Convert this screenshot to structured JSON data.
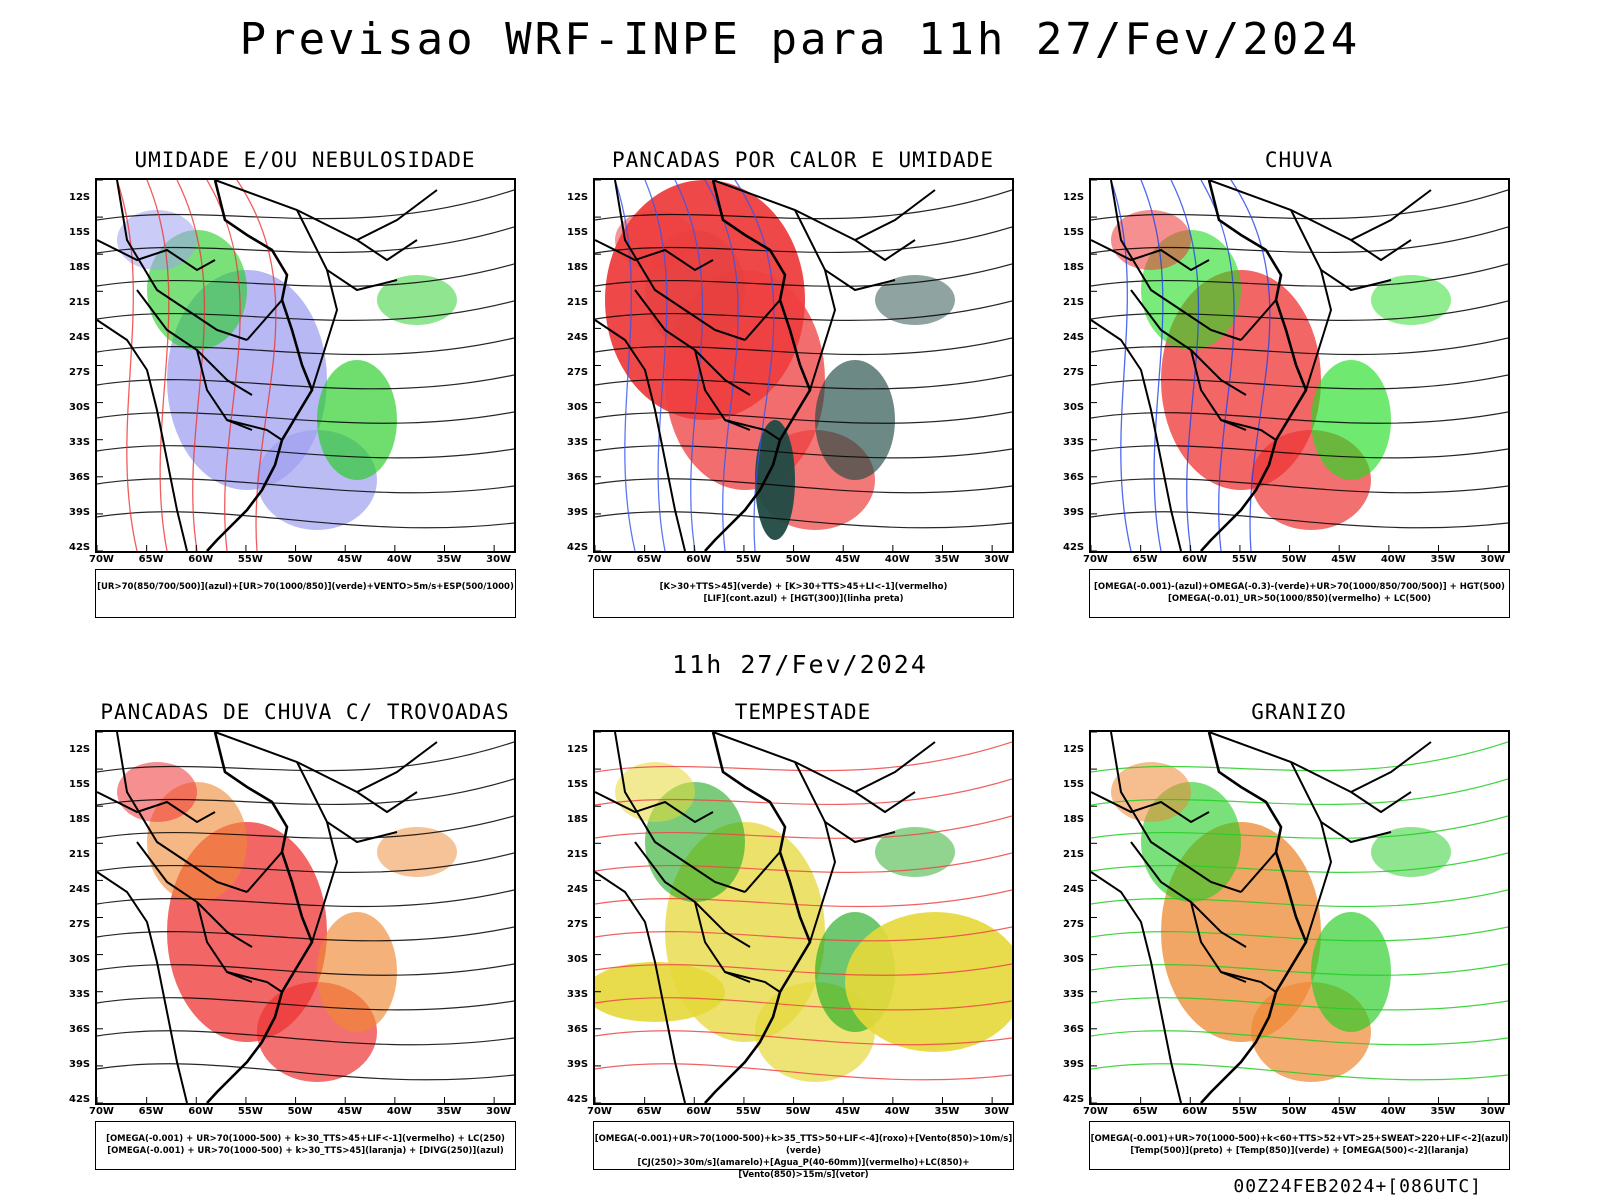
{
  "title": "Previsao WRF-INPE  para 11h 27/Fev/2024",
  "mid_title": "11h 27/Fev/2024",
  "footer": "00Z24FEB2024+[086UTC]",
  "lat_labels": [
    "12S",
    "15S",
    "18S",
    "21S",
    "24S",
    "27S",
    "30S",
    "33S",
    "36S",
    "39S",
    "42S"
  ],
  "lon_labels": [
    "70W",
    "65W",
    "60W",
    "55W",
    "50W",
    "45W",
    "40W",
    "35W",
    "30W"
  ],
  "panels": [
    {
      "title": "UMIDADE E/OU NEBULOSIDADE",
      "legend": [
        "[UR>70(850/700/500)](azul)+[UR>70(1000/850)](verde)+VENTO>5m/s+ESP(500/1000)"
      ],
      "colors": {
        "primary": "#a0a0f0",
        "secondary": "#22cc22",
        "lines": "#ee3333"
      }
    },
    {
      "title": "PANCADAS POR CALOR E UMIDADE",
      "legend": [
        "[K>30+TTS>45](verde) + [K>30+TTS>45+LI<-1](vermelho)",
        "[LIF](cont.azul) + [HGT(300)](linha preta)"
      ],
      "colors": {
        "primary": "#ee3e3e",
        "secondary": "#1f4a44",
        "lines": "#3355ee"
      }
    },
    {
      "title": "CHUVA",
      "legend": [
        "[OMEGA(-0.001)-(azul)+OMEGA(-0.3)-(verde)+UR>70(1000/850/700/500)] + HGT(500)",
        "[OMEGA(-0.01)_UR>50(1000/850)(vermelho) + LC(500)"
      ],
      "colors": {
        "primary": "#ee3333",
        "secondary": "#22dd22",
        "lines": "#2244ee"
      }
    },
    {
      "title": "PANCADAS DE CHUVA C/ TROVOADAS",
      "legend": [
        "[OMEGA(-0.001) + UR>70(1000-500) + k>30_TTS>45+LIF<-1](vermelho) + LC(250)",
        "[OMEGA(-0.001) + UR>70(1000-500) + k>30_TTS>45](laranja) + [DIVG(250)](azul)"
      ],
      "colors": {
        "primary": "#ee3333",
        "secondary": "#ee8833",
        "lines": "#3355ee"
      }
    },
    {
      "title": "TEMPESTADE",
      "legend": [
        "[OMEGA(-0.001)+UR>70(1000-500)+k>35_TTS>50+LIF<-4](roxo)+[Vento(850)>10m/s](verde)",
        "[CJ(250)>30m/s](amarelo)+[Agua_P(40-60mm)](vermelho)+LC(850)+[Vento(850)>15m/s](vetor)"
      ],
      "colors": {
        "primary": "#e6d83a",
        "secondary": "#22aa22",
        "lines": "#ee4444"
      }
    },
    {
      "title": "GRANIZO",
      "legend": [
        "[OMEGA(-0.001)+UR>70(1000-500)+k<60+TTS>52+VT>25+SWEAT>220+LIF<-2](azul)",
        "[Temp(500)](preto) + [Temp(850)](verde) + [OMEGA(500)<-2](laranja)"
      ],
      "colors": {
        "primary": "#ee8833",
        "secondary": "#22cc22",
        "lines": "#22cc22"
      }
    }
  ]
}
